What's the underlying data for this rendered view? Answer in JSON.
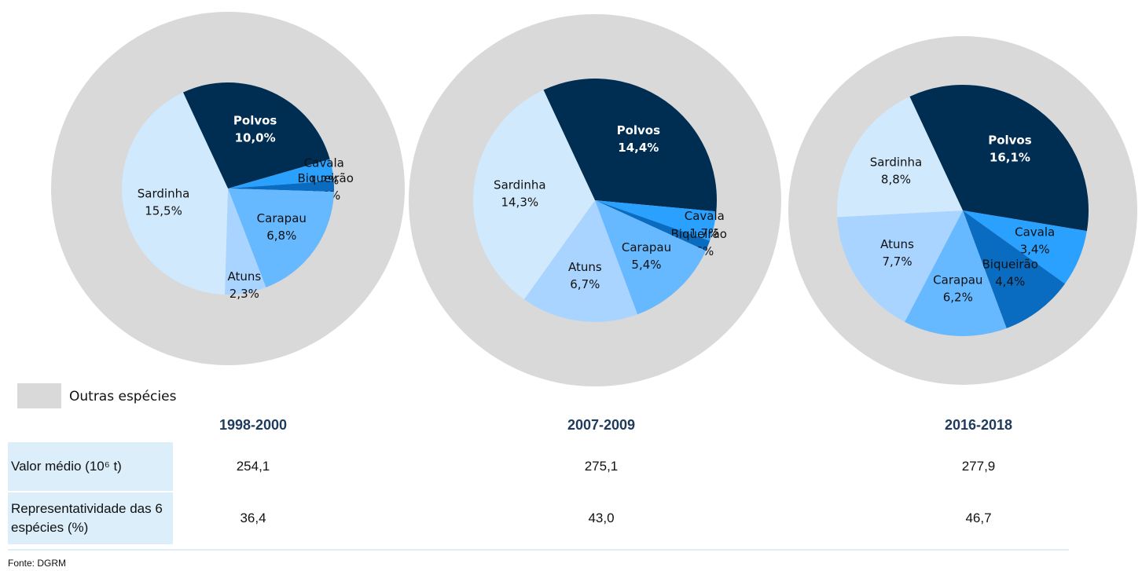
{
  "chart_data": [
    {
      "type": "pie",
      "title": "1998-2000",
      "categories": [
        "Polvos",
        "Cavala",
        "Biqueirão",
        "Carapau",
        "Atuns",
        "Sardinha"
      ],
      "values": [
        10.0,
        1.2,
        0.6,
        6.8,
        2.3,
        15.5
      ],
      "value_labels": [
        "10,0%",
        "1,2%",
        "0,6%",
        "6,8%",
        "2,3%",
        "15,5%"
      ],
      "colors": [
        "#002d52",
        "#2aa1ff",
        "#0a6cc0",
        "#66b8ff",
        "#a9d4ff",
        "#d1e9fc"
      ]
    },
    {
      "type": "pie",
      "title": "2007-2009",
      "categories": [
        "Polvos",
        "Cavala",
        "Biqueirão",
        "Carapau",
        "Atuns",
        "Sardinha"
      ],
      "values": [
        14.4,
        1.7,
        0.6,
        5.4,
        6.7,
        14.3
      ],
      "value_labels": [
        "14,4%",
        "1,7%",
        "0,6%",
        "5,4%",
        "6,7%",
        "14,3%"
      ],
      "colors": [
        "#002d52",
        "#2aa1ff",
        "#0a6cc0",
        "#66b8ff",
        "#a9d4ff",
        "#d1e9fc"
      ]
    },
    {
      "type": "pie",
      "title": "2016-2018",
      "categories": [
        "Polvos",
        "Cavala",
        "Biqueirão",
        "Carapau",
        "Atuns",
        "Sardinha"
      ],
      "values": [
        16.1,
        3.4,
        4.4,
        6.2,
        7.7,
        8.8
      ],
      "value_labels": [
        "16,1%",
        "3,4%",
        "4,4%",
        "6,2%",
        "7,7%",
        "8,8%"
      ],
      "colors": [
        "#002d52",
        "#2aa1ff",
        "#0a6cc0",
        "#66b8ff",
        "#a9d4ff",
        "#d1e9fc"
      ]
    }
  ],
  "legend": {
    "label": "Outras espécies",
    "color": "#d9d9d9"
  },
  "table": {
    "rows": [
      [
        "Valor médio (10⁶ t)",
        "254,1",
        "275,1",
        "277,9"
      ],
      [
        "Representatividade das 6 espécies (%)",
        "36,4",
        "43,0",
        "46,7"
      ]
    ]
  },
  "source": "Fonte: DGRM"
}
